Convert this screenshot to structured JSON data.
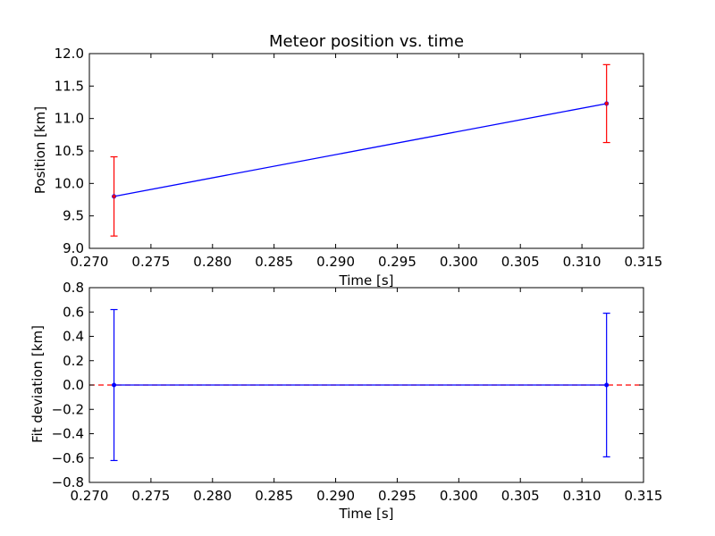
{
  "chart_data": [
    {
      "type": "line",
      "title": "Meteor position vs. time",
      "xlabel": "Time [s]",
      "ylabel": "Position [km]",
      "xlim": [
        0.27,
        0.315
      ],
      "ylim": [
        9.0,
        12.0
      ],
      "x_ticks": [
        "0.270",
        "0.275",
        "0.280",
        "0.285",
        "0.290",
        "0.295",
        "0.300",
        "0.305",
        "0.310",
        "0.315"
      ],
      "y_ticks": [
        "9.0",
        "9.5",
        "10.0",
        "10.5",
        "11.0",
        "11.5",
        "12.0"
      ],
      "grid": false,
      "series": [
        {
          "x": [
            0.272,
            0.312
          ],
          "y": [
            9.8,
            11.23
          ],
          "yerr": [
            0.61,
            0.6
          ],
          "line_color": "#0000ff",
          "marker_color": "#ff0000",
          "errorbar_color": "#ff0000"
        }
      ]
    },
    {
      "type": "line",
      "title": "",
      "xlabel": "Time [s]",
      "ylabel": "Fit deviation [km]",
      "xlim": [
        0.27,
        0.315
      ],
      "ylim": [
        -0.8,
        0.8
      ],
      "x_ticks": [
        "0.270",
        "0.275",
        "0.280",
        "0.285",
        "0.290",
        "0.295",
        "0.300",
        "0.305",
        "0.310",
        "0.315"
      ],
      "y_ticks": [
        "−0.8",
        "−0.6",
        "−0.4",
        "−0.2",
        "0.0",
        "0.2",
        "0.4",
        "0.6",
        "0.8"
      ],
      "grid": false,
      "series": [
        {
          "x": [
            0.272,
            0.312
          ],
          "y": [
            0.0,
            0.0
          ],
          "yerr": [
            0.62,
            0.59
          ],
          "line_color": "#0000ff",
          "marker_color": "#0000ff",
          "errorbar_color": "#0000ff"
        }
      ],
      "reference_line": {
        "y": 0.0,
        "color": "#ff0000",
        "style": "dashed"
      }
    }
  ]
}
